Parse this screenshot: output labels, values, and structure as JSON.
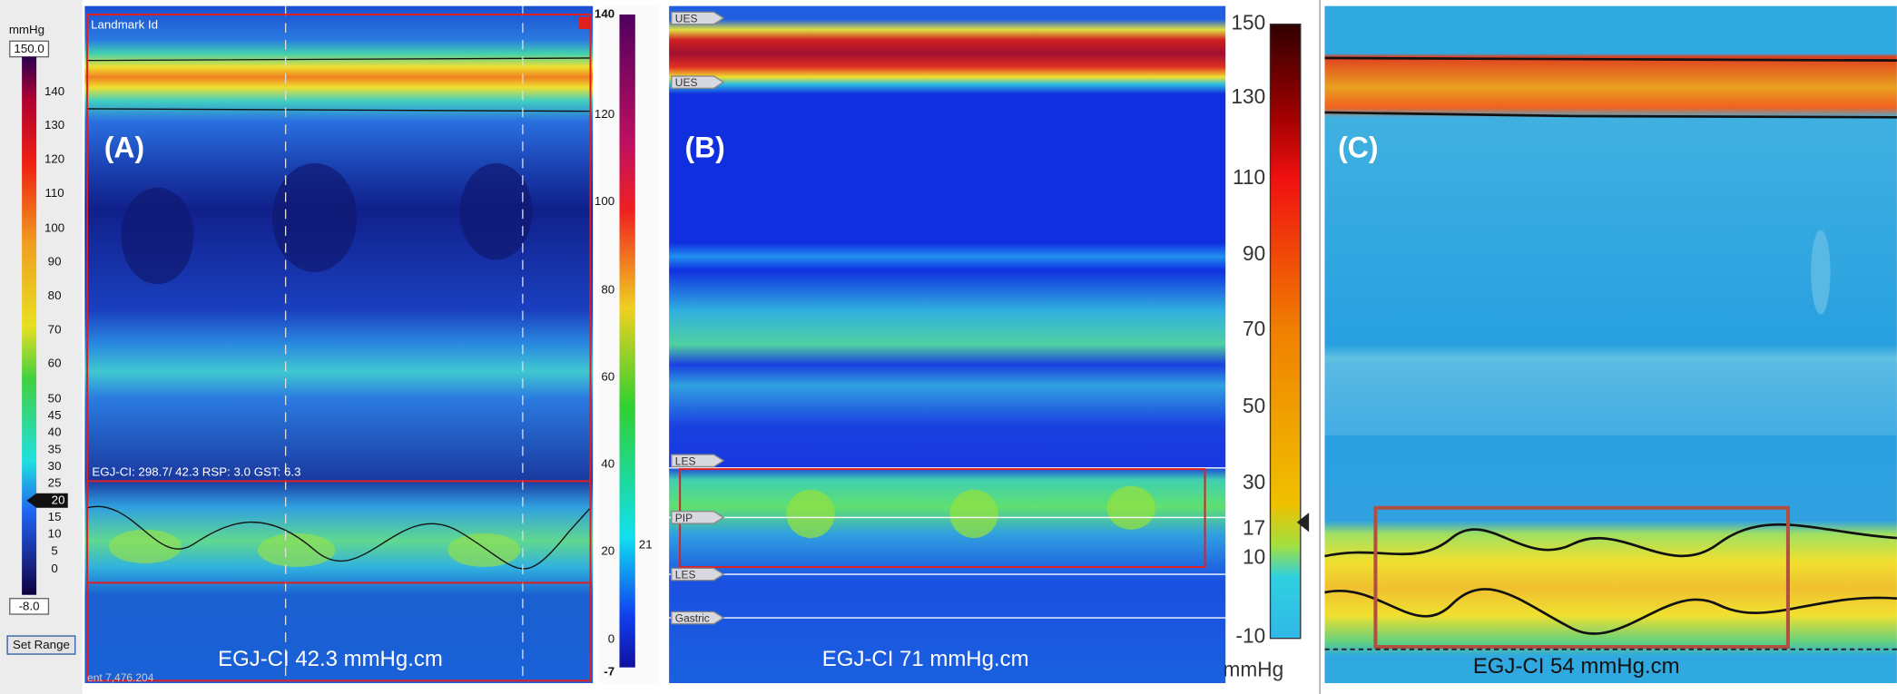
{
  "panel_a": {
    "label": "(A)",
    "landmark": "Landmark Id",
    "info": "EGJ-CI: 298.7/ 42.3 RSP: 3.0 GST:  6.3",
    "caption": "EGJ-CI 42.3 mmHg.cm",
    "event": "ent 7,476.204",
    "left_scale": {
      "unit": "mmHg",
      "max": "150.0",
      "min": "-8.0",
      "marker": "20",
      "button": "Set Range",
      "ticks": [
        "140",
        "130",
        "120",
        "110",
        "100",
        "90",
        "80",
        "70",
        "60",
        "50",
        "45",
        "40",
        "35",
        "30",
        "25",
        "15",
        "10",
        "5",
        "0"
      ]
    },
    "right_scale": {
      "ticks": [
        "140",
        "120",
        "100",
        "80",
        "60",
        "40",
        "20",
        "0",
        "-7"
      ],
      "marker": "21"
    }
  },
  "panel_b": {
    "label": "(B)",
    "caption": "EGJ-CI 71 mmHg.cm",
    "landmarks": [
      "UES",
      "UES",
      "LES",
      "PIP",
      "LES",
      "Gastric"
    ],
    "scale": {
      "unit": "mmHg",
      "ticks": [
        "150",
        "130",
        "110",
        "90",
        "70",
        "50",
        "30",
        "17",
        "10",
        "-10"
      ]
    }
  },
  "panel_c": {
    "label": "(C)",
    "caption": "EGJ-CI 54 mmHg.cm"
  }
}
